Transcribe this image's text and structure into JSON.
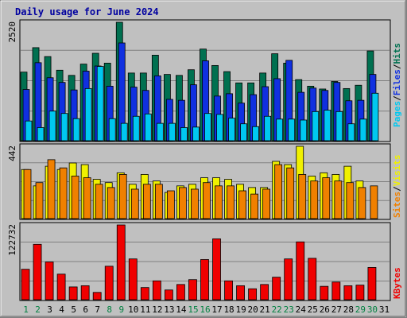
{
  "chart_data": {
    "type": "bar",
    "title": "Daily usage for June 2024",
    "days": [
      "1",
      "2",
      "3",
      "4",
      "5",
      "6",
      "7",
      "8",
      "9",
      "10",
      "11",
      "12",
      "13",
      "14",
      "15",
      "16",
      "17",
      "18",
      "19",
      "20",
      "21",
      "22",
      "23",
      "24",
      "25",
      "26",
      "27",
      "28",
      "29",
      "30",
      "31"
    ],
    "weekend_days": [
      "1",
      "2",
      "8",
      "9",
      "15",
      "16",
      "22",
      "23",
      "29",
      "30"
    ],
    "panels": [
      {
        "id": "top",
        "ymax_label": "2520",
        "ymax": 2520,
        "series": [
          {
            "name": "Hits",
            "color": "#007050",
            "values": [
              1460,
              1980,
              1790,
              1500,
              1390,
              1630,
              1860,
              1650,
              2520,
              1440,
              1440,
              1820,
              1410,
              1390,
              1510,
              1950,
              1600,
              1470,
              1230,
              1230,
              1440,
              1850,
              1650,
              1300,
              1160,
              1100,
              1260,
              1110,
              1180,
              1910,
              0
            ]
          },
          {
            "name": "Files",
            "color": "#1030e0",
            "values": [
              1090,
              1660,
              1340,
              1240,
              1080,
              1480,
              1590,
              1160,
              2080,
              1140,
              1070,
              1380,
              880,
              860,
              1190,
              1700,
              950,
              1000,
              800,
              980,
              1150,
              1320,
              1710,
              1030,
              1120,
              1070,
              1240,
              850,
              860,
              1410,
              0
            ]
          },
          {
            "name": "Pages",
            "color": "#00c8f0",
            "values": [
              420,
              280,
              630,
              580,
              470,
              1110,
              1580,
              470,
              370,
              520,
              570,
              370,
              370,
              280,
              290,
              580,
              560,
              480,
              360,
              300,
              520,
              460,
              460,
              440,
              620,
              650,
              620,
              360,
              460,
              1010,
              0
            ]
          }
        ],
        "legend": [
          "Pages",
          "Files",
          "Hits"
        ]
      },
      {
        "id": "mid",
        "ymax_label": "442",
        "ymax": 442,
        "series": [
          {
            "name": "Visits",
            "color": "#f0f000",
            "values": [
              300,
              200,
              320,
              300,
              340,
              330,
              240,
              220,
              280,
              210,
              270,
              230,
              160,
              200,
              210,
              250,
              250,
              240,
              210,
              190,
              190,
              350,
              330,
              442,
              260,
              280,
              270,
              320,
              230,
              0,
              0
            ]
          },
          {
            "name": "Sites",
            "color": "#f08000",
            "values": [
              300,
              220,
              360,
              310,
              260,
              250,
              210,
              190,
              270,
              180,
              210,
              210,
              170,
              190,
              180,
              220,
              200,
              200,
              170,
              150,
              180,
              330,
              310,
              270,
              230,
              250,
              230,
              220,
              190,
              200,
              0
            ]
          }
        ],
        "legend": [
          "Sites",
          "Visits"
        ]
      },
      {
        "id": "bottom",
        "ymax_label": "122732",
        "ymax": 122732,
        "series": [
          {
            "name": "KBytes",
            "color": "#f00000",
            "values": [
              50000,
              91000,
              62000,
              42000,
              21000,
              23000,
              12000,
              55000,
              122732,
              67000,
              20000,
              31000,
              16000,
              25000,
              33000,
              66000,
              100000,
              31000,
              23000,
              18000,
              25000,
              37000,
              67000,
              95000,
              68000,
              22000,
              29000,
              23000,
              24000,
              53000,
              0
            ]
          }
        ],
        "legend": [
          "KBytes"
        ]
      }
    ],
    "legend_separator": "/"
  },
  "colors": {
    "title": "#0000a0",
    "weekday_label": "#000000",
    "weekend_label": "#008040",
    "grid": "#808080"
  }
}
